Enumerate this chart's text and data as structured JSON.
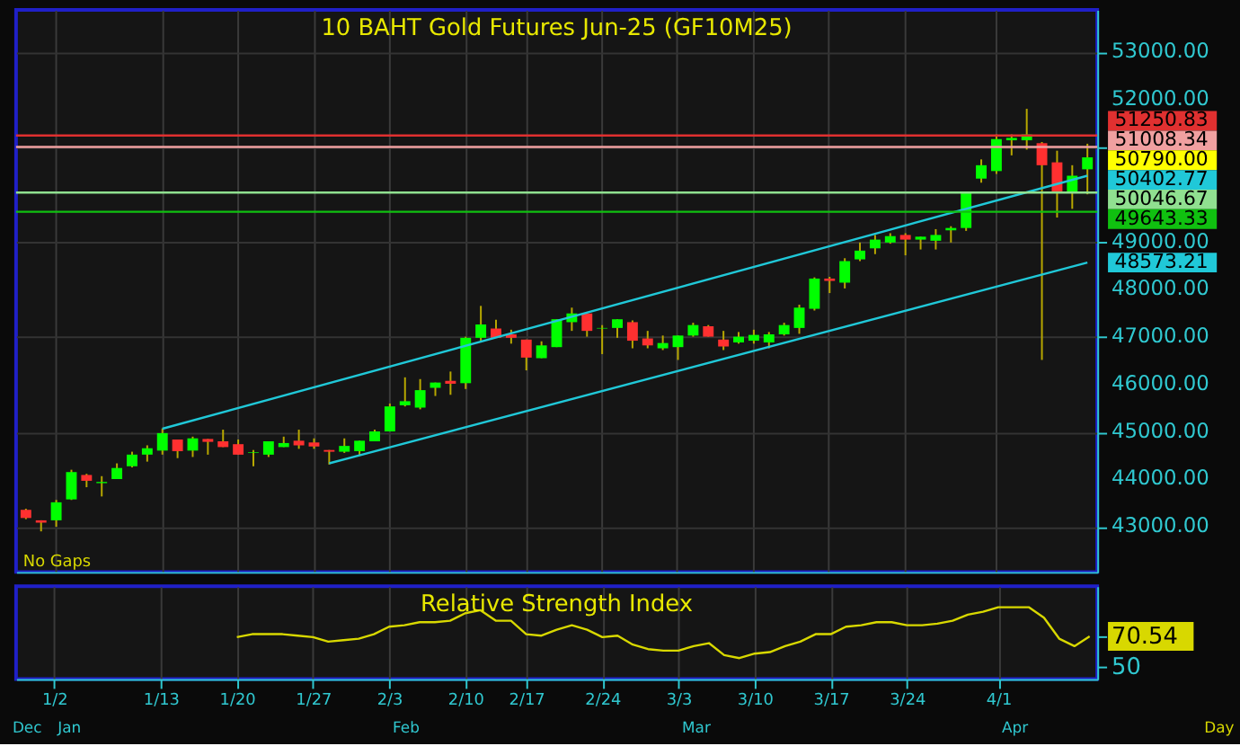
{
  "chart_data": [
    {
      "type": "candlestick",
      "title": "10 BAHT Gold Futures Jun-25 (GF10M25)",
      "categories": [
        null,
        null,
        null,
        null,
        null,
        null,
        null,
        null,
        null,
        null,
        null,
        null,
        null,
        null,
        null,
        null,
        null,
        null,
        null,
        null,
        null,
        null,
        null,
        null,
        null,
        null,
        null,
        null,
        null,
        null,
        null,
        null,
        null,
        null,
        null,
        null,
        null,
        null,
        null,
        null,
        null,
        null,
        null,
        null,
        null,
        null,
        null,
        null,
        null,
        null,
        null,
        null,
        null,
        null,
        null,
        null,
        null,
        null,
        null,
        null,
        null,
        null,
        null,
        null,
        null,
        null,
        null,
        null,
        null,
        null,
        null
      ],
      "ohlc": [
        [
          43360,
          43384,
          43163,
          43188
        ],
        [
          43139,
          43139,
          42906,
          43090
        ],
        [
          43139,
          43568,
          43004,
          43519
        ],
        [
          43580,
          44205,
          43568,
          44156
        ],
        [
          44095,
          44119,
          43837,
          43972
        ],
        [
          43923,
          44070,
          43642,
          43948
        ],
        [
          44009,
          44340,
          44009,
          44242
        ],
        [
          44279,
          44585,
          44254,
          44524
        ],
        [
          44524,
          44720,
          44376,
          44658
        ],
        [
          44609,
          45075,
          44524,
          44977
        ],
        [
          44842,
          44842,
          44450,
          44597
        ],
        [
          44609,
          44903,
          44474,
          44867
        ],
        [
          44854,
          44854,
          44523,
          44793
        ],
        [
          44805,
          45050,
          44683,
          44683
        ],
        [
          44744,
          44842,
          44523,
          44523
        ],
        [
          44560,
          44621,
          44278,
          44573
        ],
        [
          44523,
          44805,
          44474,
          44805
        ],
        [
          44683,
          44903,
          44683,
          44768
        ],
        [
          44817,
          45050,
          44646,
          44719
        ],
        [
          44780,
          44866,
          44646,
          44695
        ],
        [
          44621,
          44621,
          44315,
          44585
        ],
        [
          44585,
          44866,
          44560,
          44707
        ],
        [
          44597,
          44817,
          44499,
          44817
        ],
        [
          44805,
          45050,
          44805,
          45013
        ],
        [
          45013,
          45601,
          45013,
          45540
        ],
        [
          45564,
          46153,
          45540,
          45650
        ],
        [
          45515,
          46116,
          45479,
          45883
        ],
        [
          45932,
          46043,
          45760,
          46043
        ],
        [
          46079,
          46275,
          45785,
          46018
        ],
        [
          46030,
          47010,
          45907,
          46986
        ],
        [
          46986,
          47659,
          46888,
          47267
        ],
        [
          47182,
          47365,
          46986,
          46986
        ],
        [
          47059,
          47157,
          46863,
          46986
        ],
        [
          46949,
          46949,
          46300,
          46569
        ],
        [
          46557,
          46912,
          46557,
          46826
        ],
        [
          46790,
          47378,
          46790,
          47378
        ],
        [
          47316,
          47622,
          47132,
          47500
        ],
        [
          47500,
          47500,
          47010,
          47132
        ],
        [
          47182,
          47254,
          46643,
          47194
        ],
        [
          47194,
          47377,
          46986,
          47377
        ],
        [
          47316,
          47353,
          46765,
          46925
        ],
        [
          46973,
          47132,
          46765,
          46826
        ],
        [
          46765,
          47034,
          46728,
          46876
        ],
        [
          46790,
          47034,
          46520,
          47034
        ],
        [
          47034,
          47304,
          47010,
          47255
        ],
        [
          47230,
          47255,
          47010,
          47010
        ],
        [
          46949,
          47132,
          46728,
          46803
        ],
        [
          46888,
          47108,
          46863,
          47010
        ],
        [
          46925,
          47157,
          46863,
          47047
        ],
        [
          46888,
          47108,
          46765,
          47059
        ],
        [
          47059,
          47304,
          47034,
          47255
        ],
        [
          47194,
          47684,
          47071,
          47622
        ],
        [
          47598,
          48260,
          47561,
          48235
        ],
        [
          48235,
          48272,
          47929,
          48186
        ],
        [
          48149,
          48664,
          48027,
          48603
        ],
        [
          48640,
          48995,
          48603,
          48824
        ],
        [
          48872,
          49154,
          48750,
          49056
        ],
        [
          48995,
          49191,
          48970,
          49130
        ],
        [
          49154,
          49191,
          48725,
          49056
        ],
        [
          49056,
          49118,
          48848,
          49118
        ],
        [
          49032,
          49277,
          48848,
          49154
        ],
        [
          49252,
          49338,
          48995,
          49301
        ],
        [
          49301,
          50048,
          49240,
          50048
        ],
        [
          50342,
          50747,
          50256,
          50624
        ],
        [
          50501,
          51273,
          50440,
          51175
        ],
        [
          51150,
          51273,
          50832,
          51200
        ],
        [
          51150,
          51813,
          50954,
          51273
        ],
        [
          51089,
          51113,
          46520,
          50624
        ],
        [
          50685,
          50930,
          49521,
          50072
        ],
        [
          50048,
          50624,
          49705,
          50403
        ],
        [
          50538,
          51077,
          50011,
          50790
        ]
      ],
      "colors": [
        "#ff3030",
        "#ff3030",
        "#00ff00",
        "#00ff00",
        "#ff3030",
        "#00ff00",
        "#00ff00",
        "#00ff00",
        "#00ff00",
        "#00ff00",
        "#ff3030",
        "#00ff00",
        "#ff3030",
        "#ff3030",
        "#ff3030",
        "#00ff00",
        "#00ff00",
        "#00ff00",
        "#ff3030",
        "#ff3030",
        "#ff3030",
        "#00ff00",
        "#00ff00",
        "#00ff00",
        "#00ff00",
        "#00ff00",
        "#00ff00",
        "#00ff00",
        "#ff3030",
        "#00ff00",
        "#00ff00",
        "#ff3030",
        "#ff3030",
        "#ff3030",
        "#00ff00",
        "#00ff00",
        "#00ff00",
        "#ff3030",
        "#00ff00",
        "#00ff00",
        "#ff3030",
        "#ff3030",
        "#00ff00",
        "#00ff00",
        "#00ff00",
        "#ff3030",
        "#ff3030",
        "#00ff00",
        "#00ff00",
        "#00ff00",
        "#00ff00",
        "#00ff00",
        "#00ff00",
        "#ff3030",
        "#00ff00",
        "#00ff00",
        "#00ff00",
        "#00ff00",
        "#ff3030",
        "#00ff00",
        "#00ff00",
        "#00ff00",
        "#00ff00",
        "#00ff00",
        "#00ff00",
        "#00ff00",
        "#00ff00",
        "#ff3030",
        "#ff3030",
        "#00ff00",
        "#00ff00"
      ],
      "value_labels": [
        null,
        null,
        null,
        null,
        null,
        null,
        null,
        null,
        null,
        null,
        null,
        null,
        null,
        null,
        null,
        null,
        null,
        null,
        null,
        null,
        null,
        null,
        null,
        null,
        null,
        null,
        null,
        null,
        null,
        null,
        null,
        null,
        null,
        null,
        null,
        null,
        null,
        null,
        null,
        null,
        null,
        null,
        null,
        null,
        null,
        null,
        null,
        null,
        null,
        null,
        null,
        null,
        null,
        null,
        null,
        null,
        null,
        null,
        null,
        null,
        null,
        null,
        null,
        null,
        null,
        null,
        null,
        null,
        null,
        null,
        "50790.00"
      ],
      "series": [
        {
          "type": "line",
          "color": "#20c8d8",
          "values": [
            null,
            null,
            null,
            null,
            null,
            null,
            null,
            null,
            null,
            45070,
            null,
            null,
            null,
            null,
            null,
            null,
            null,
            null,
            null,
            null,
            null,
            null,
            null,
            null,
            null,
            null,
            null,
            null,
            null,
            null,
            null,
            null,
            null,
            null,
            null,
            null,
            null,
            null,
            null,
            null,
            null,
            null,
            null,
            null,
            null,
            null,
            null,
            null,
            null,
            null,
            null,
            null,
            null,
            null,
            null,
            null,
            null,
            null,
            null,
            null,
            null,
            null,
            null,
            null,
            null,
            null,
            null,
            null,
            null,
            null,
            50402.77
          ],
          "value_labels": [
            null,
            null,
            null,
            null,
            null,
            null,
            null,
            null,
            null,
            null,
            null,
            null,
            null,
            null,
            null,
            null,
            null,
            null,
            null,
            null,
            null,
            null,
            null,
            null,
            null,
            null,
            null,
            null,
            null,
            null,
            null,
            null,
            null,
            null,
            null,
            null,
            null,
            null,
            null,
            null,
            null,
            null,
            null,
            null,
            null,
            null,
            null,
            null,
            null,
            null,
            null,
            null,
            null,
            null,
            null,
            null,
            null,
            null,
            null,
            null,
            null,
            null,
            null,
            null,
            null,
            null,
            null,
            null,
            null,
            null,
            "50402.77"
          ]
        },
        {
          "type": "line",
          "color": "#20c8d8",
          "values": [
            null,
            null,
            null,
            null,
            null,
            null,
            null,
            null,
            null,
            null,
            null,
            null,
            null,
            null,
            null,
            null,
            null,
            null,
            null,
            null,
            44340,
            null,
            null,
            null,
            null,
            null,
            null,
            null,
            null,
            null,
            null,
            null,
            null,
            null,
            null,
            null,
            null,
            null,
            null,
            null,
            null,
            null,
            null,
            null,
            null,
            null,
            null,
            null,
            null,
            null,
            null,
            null,
            null,
            null,
            null,
            null,
            null,
            null,
            null,
            null,
            null,
            null,
            null,
            null,
            null,
            null,
            null,
            null,
            null,
            null,
            48573.21
          ],
          "value_labels": [
            null,
            null,
            null,
            null,
            null,
            null,
            null,
            null,
            null,
            null,
            null,
            null,
            null,
            null,
            null,
            null,
            null,
            null,
            null,
            null,
            null,
            null,
            null,
            null,
            null,
            null,
            null,
            null,
            null,
            null,
            null,
            null,
            null,
            null,
            null,
            null,
            null,
            null,
            null,
            null,
            null,
            null,
            null,
            null,
            null,
            null,
            null,
            null,
            null,
            null,
            null,
            null,
            null,
            null,
            null,
            null,
            null,
            null,
            null,
            null,
            null,
            null,
            null,
            null,
            null,
            null,
            null,
            null,
            null,
            null,
            "48573.21"
          ]
        }
      ],
      "ylim": [
        42050,
        53900
      ],
      "yticks": [
        {
          "value": 43000,
          "label": "43000.00"
        },
        {
          "value": 44000,
          "label": "44000.00"
        },
        {
          "value": 45000,
          "label": "45000.00"
        },
        {
          "value": 46000,
          "label": "46000.00"
        },
        {
          "value": 47000,
          "label": "47000.00"
        },
        {
          "value": 48000,
          "label": "48000.00"
        },
        {
          "value": 49000,
          "label": "49000.00"
        },
        {
          "value": 50000,
          "label": null
        },
        {
          "value": 51000,
          "label": null
        },
        {
          "value": 52000,
          "label": "52000.00"
        },
        {
          "value": 53000,
          "label": "53000.00"
        }
      ],
      "grid": true,
      "tick_labels": "y",
      "ref_lines": [
        {
          "axis": "y",
          "value": 51250.83,
          "label": "51250.83",
          "color": "#e03030"
        },
        {
          "axis": "y",
          "value": 51008.34,
          "label": "51008.34",
          "color": "#f0a0a0"
        },
        {
          "axis": "y",
          "value": 50046.67,
          "label": "50046.67",
          "color": "#90e090"
        },
        {
          "axis": "y",
          "value": 49643.33,
          "label": "49643.33",
          "color": "#10c010"
        }
      ],
      "annotations": [
        "No Gaps"
      ]
    },
    {
      "type": "line",
      "title": "Relative Strength Index",
      "categories": [
        null,
        null,
        "1/2",
        null,
        null,
        null,
        null,
        null,
        null,
        "1/13",
        null,
        null,
        null,
        null,
        "1/20",
        null,
        null,
        null,
        null,
        "1/27",
        null,
        null,
        null,
        null,
        "2/3",
        null,
        null,
        null,
        null,
        "2/10",
        null,
        null,
        null,
        "2/17",
        null,
        null,
        null,
        null,
        "2/24",
        null,
        null,
        null,
        null,
        "3/3",
        null,
        null,
        null,
        null,
        "3/10",
        null,
        null,
        null,
        null,
        "3/17",
        null,
        null,
        null,
        null,
        "3/24",
        null,
        null,
        null,
        null,
        null,
        "4/1",
        null,
        null,
        null,
        null,
        null,
        null
      ],
      "series": [
        {
          "color": "#d8d800",
          "values": [
            null,
            null,
            null,
            null,
            null,
            null,
            null,
            null,
            null,
            null,
            null,
            null,
            null,
            null,
            70,
            72,
            72,
            72,
            71,
            70,
            67,
            68,
            69,
            72,
            77,
            78,
            80,
            80,
            81,
            86,
            88,
            81,
            81,
            72,
            71,
            75,
            78,
            75,
            70,
            71,
            65,
            62,
            61,
            61,
            64,
            66,
            58,
            56,
            59,
            60,
            64,
            67,
            72,
            72,
            77,
            78,
            80,
            80,
            78,
            78,
            79,
            81,
            85,
            87,
            90,
            90,
            90,
            83,
            69,
            64,
            70.54
          ]
        }
      ],
      "ylim": [
        42,
        104
      ],
      "yticks": [
        50,
        {
          "value": 70.54,
          "label": "70.54"
        }
      ],
      "grid": "x",
      "annotations": [
        "Dec",
        "Jan",
        "Feb",
        "Mar",
        "Apr",
        "Day"
      ]
    }
  ]
}
